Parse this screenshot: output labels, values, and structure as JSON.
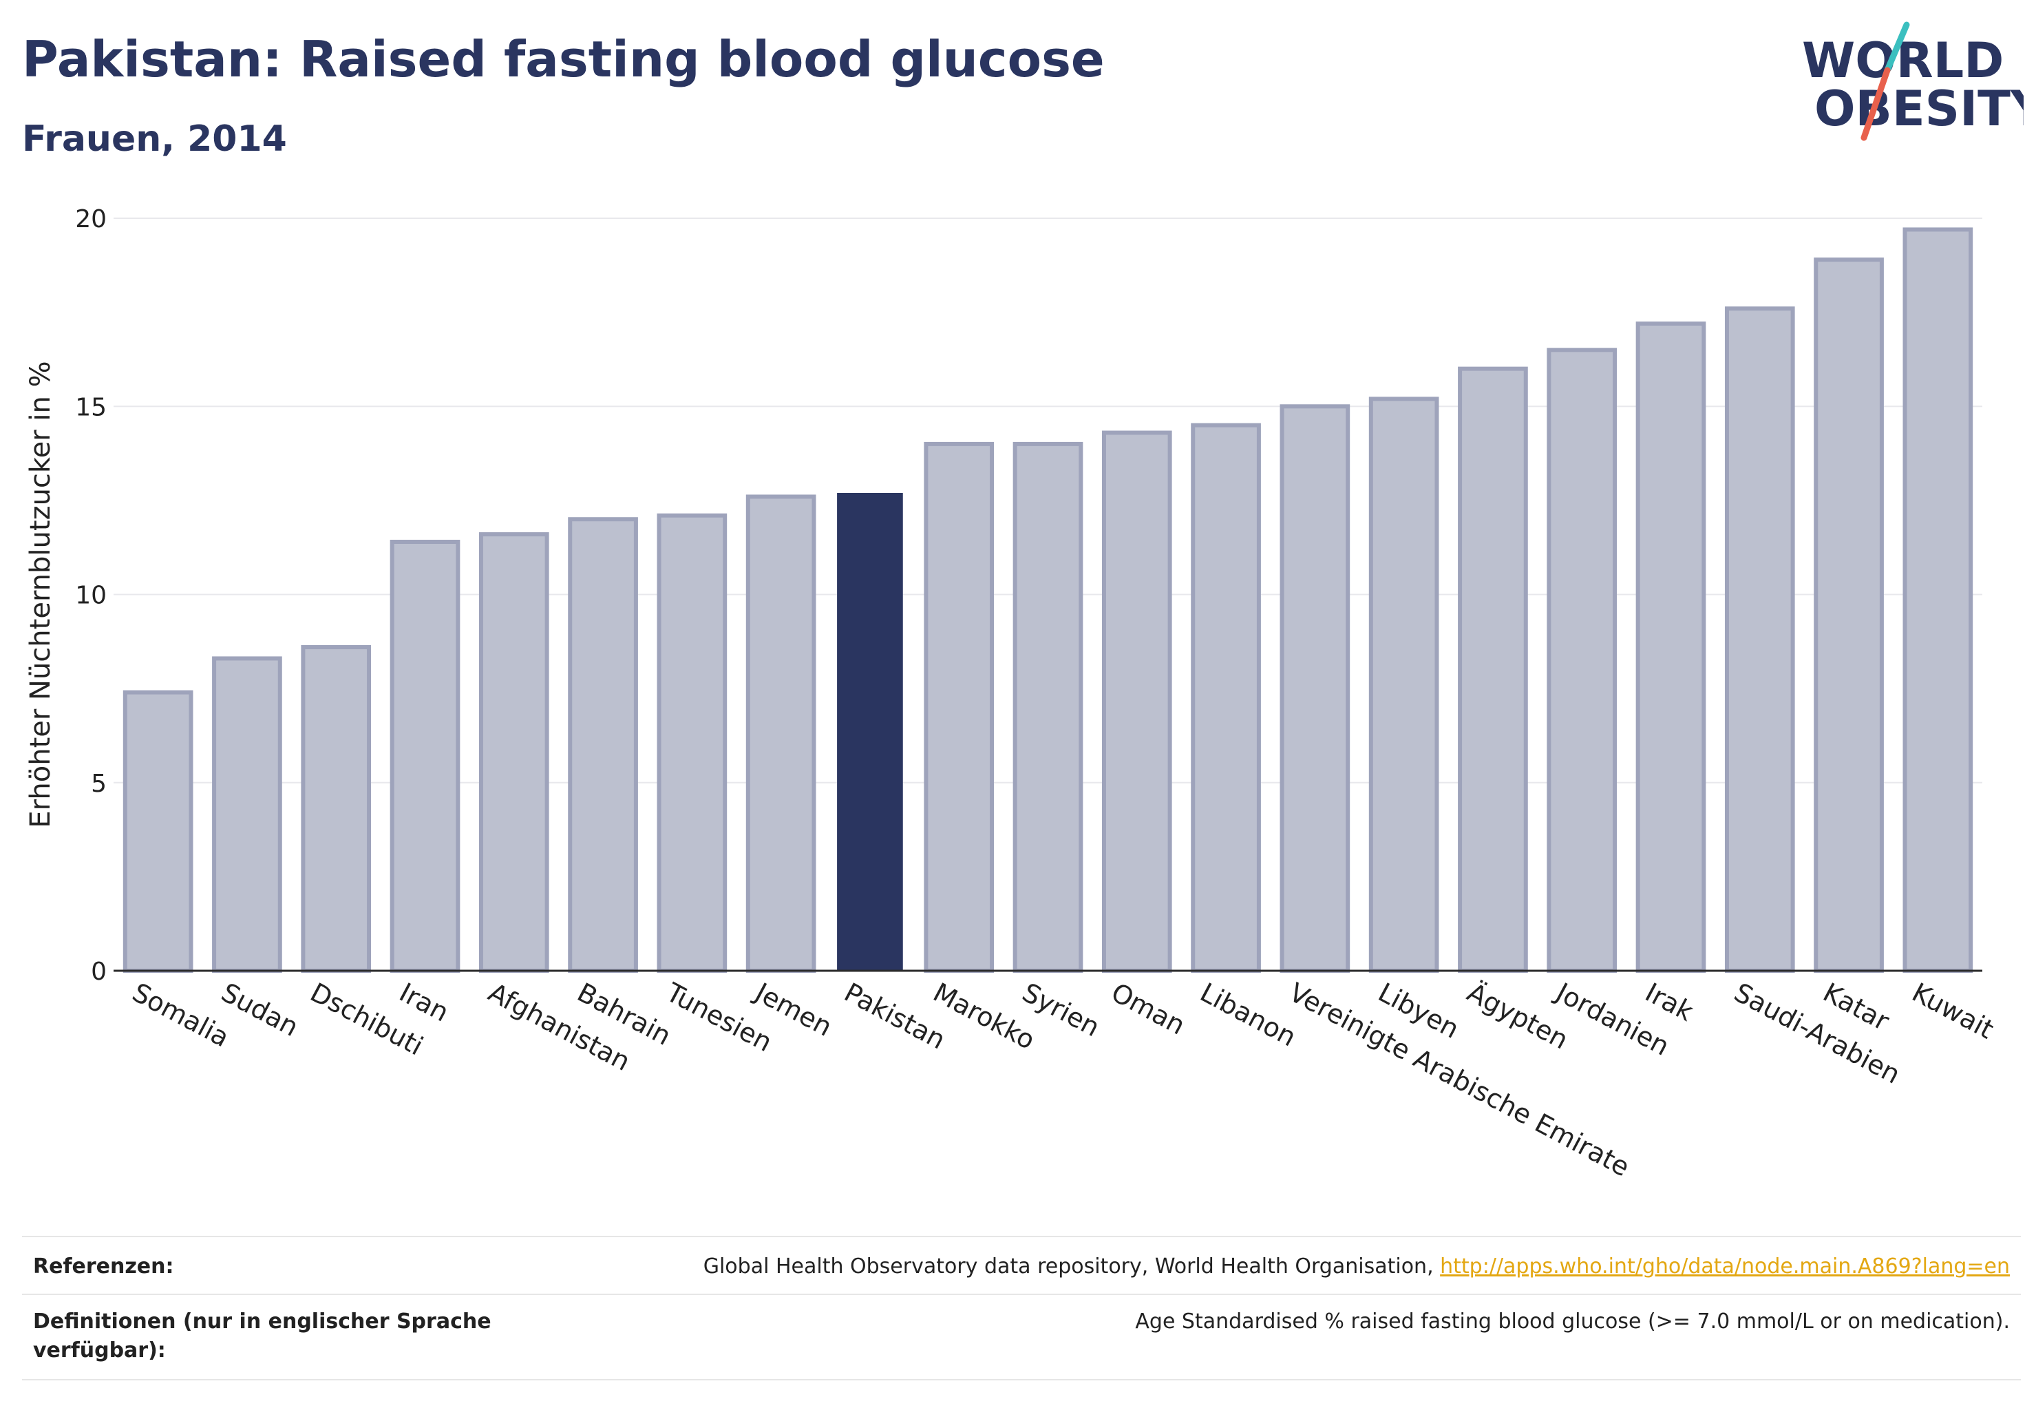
{
  "header": {
    "title": "Pakistan: Raised fasting blood glucose",
    "subtitle": "Frauen, 2014"
  },
  "logo": {
    "line1": "WORLD",
    "line2": "OBESITY",
    "colors": {
      "text": "#2a3560",
      "slash_red": "#e8604c",
      "slash_teal": "#3bbfbf"
    }
  },
  "chart_data": {
    "type": "bar",
    "title": "Pakistan: Raised fasting blood glucose",
    "subtitle": "Frauen, 2014",
    "xlabel": "",
    "ylabel": "Erhöhter Nüchternblutzucker in %",
    "ylim": [
      0,
      20
    ],
    "yticks": [
      0,
      5,
      10,
      15,
      20
    ],
    "grid": true,
    "highlight": "Pakistan",
    "colors": {
      "bar": "#bcc0cf",
      "bar_edge": "#9ea3bb",
      "highlight": "#2a3560"
    },
    "categories": [
      "Somalia",
      "Sudan",
      "Dschibuti",
      "Iran",
      "Afghanistan",
      "Bahrain",
      "Tunesien",
      "Jemen",
      "Pakistan",
      "Marokko",
      "Syrien",
      "Oman",
      "Libanon",
      "Vereinigte Arabische Emirate",
      "Libyen",
      "Ägypten",
      "Jordanien",
      "Irak",
      "Saudi-Arabien",
      "Katar",
      "Kuwait"
    ],
    "values": [
      7.4,
      8.3,
      8.6,
      11.4,
      11.6,
      12.0,
      12.1,
      12.6,
      12.7,
      14.0,
      14.0,
      14.3,
      14.5,
      15.0,
      15.2,
      16.0,
      16.5,
      17.2,
      17.6,
      18.9,
      19.7
    ]
  },
  "footer": {
    "references_label": "Referenzen:",
    "references_text": "Global Health Observatory data repository, World Health Organisation, ",
    "references_link": "http://apps.who.int/gho/data/node.main.A869?lang=en",
    "definitions_label": "Definitionen (nur in englischer Sprache verfügbar):",
    "definitions_text": "Age Standardised % raised fasting blood glucose (>= 7.0 mmol/L or on medication)."
  }
}
